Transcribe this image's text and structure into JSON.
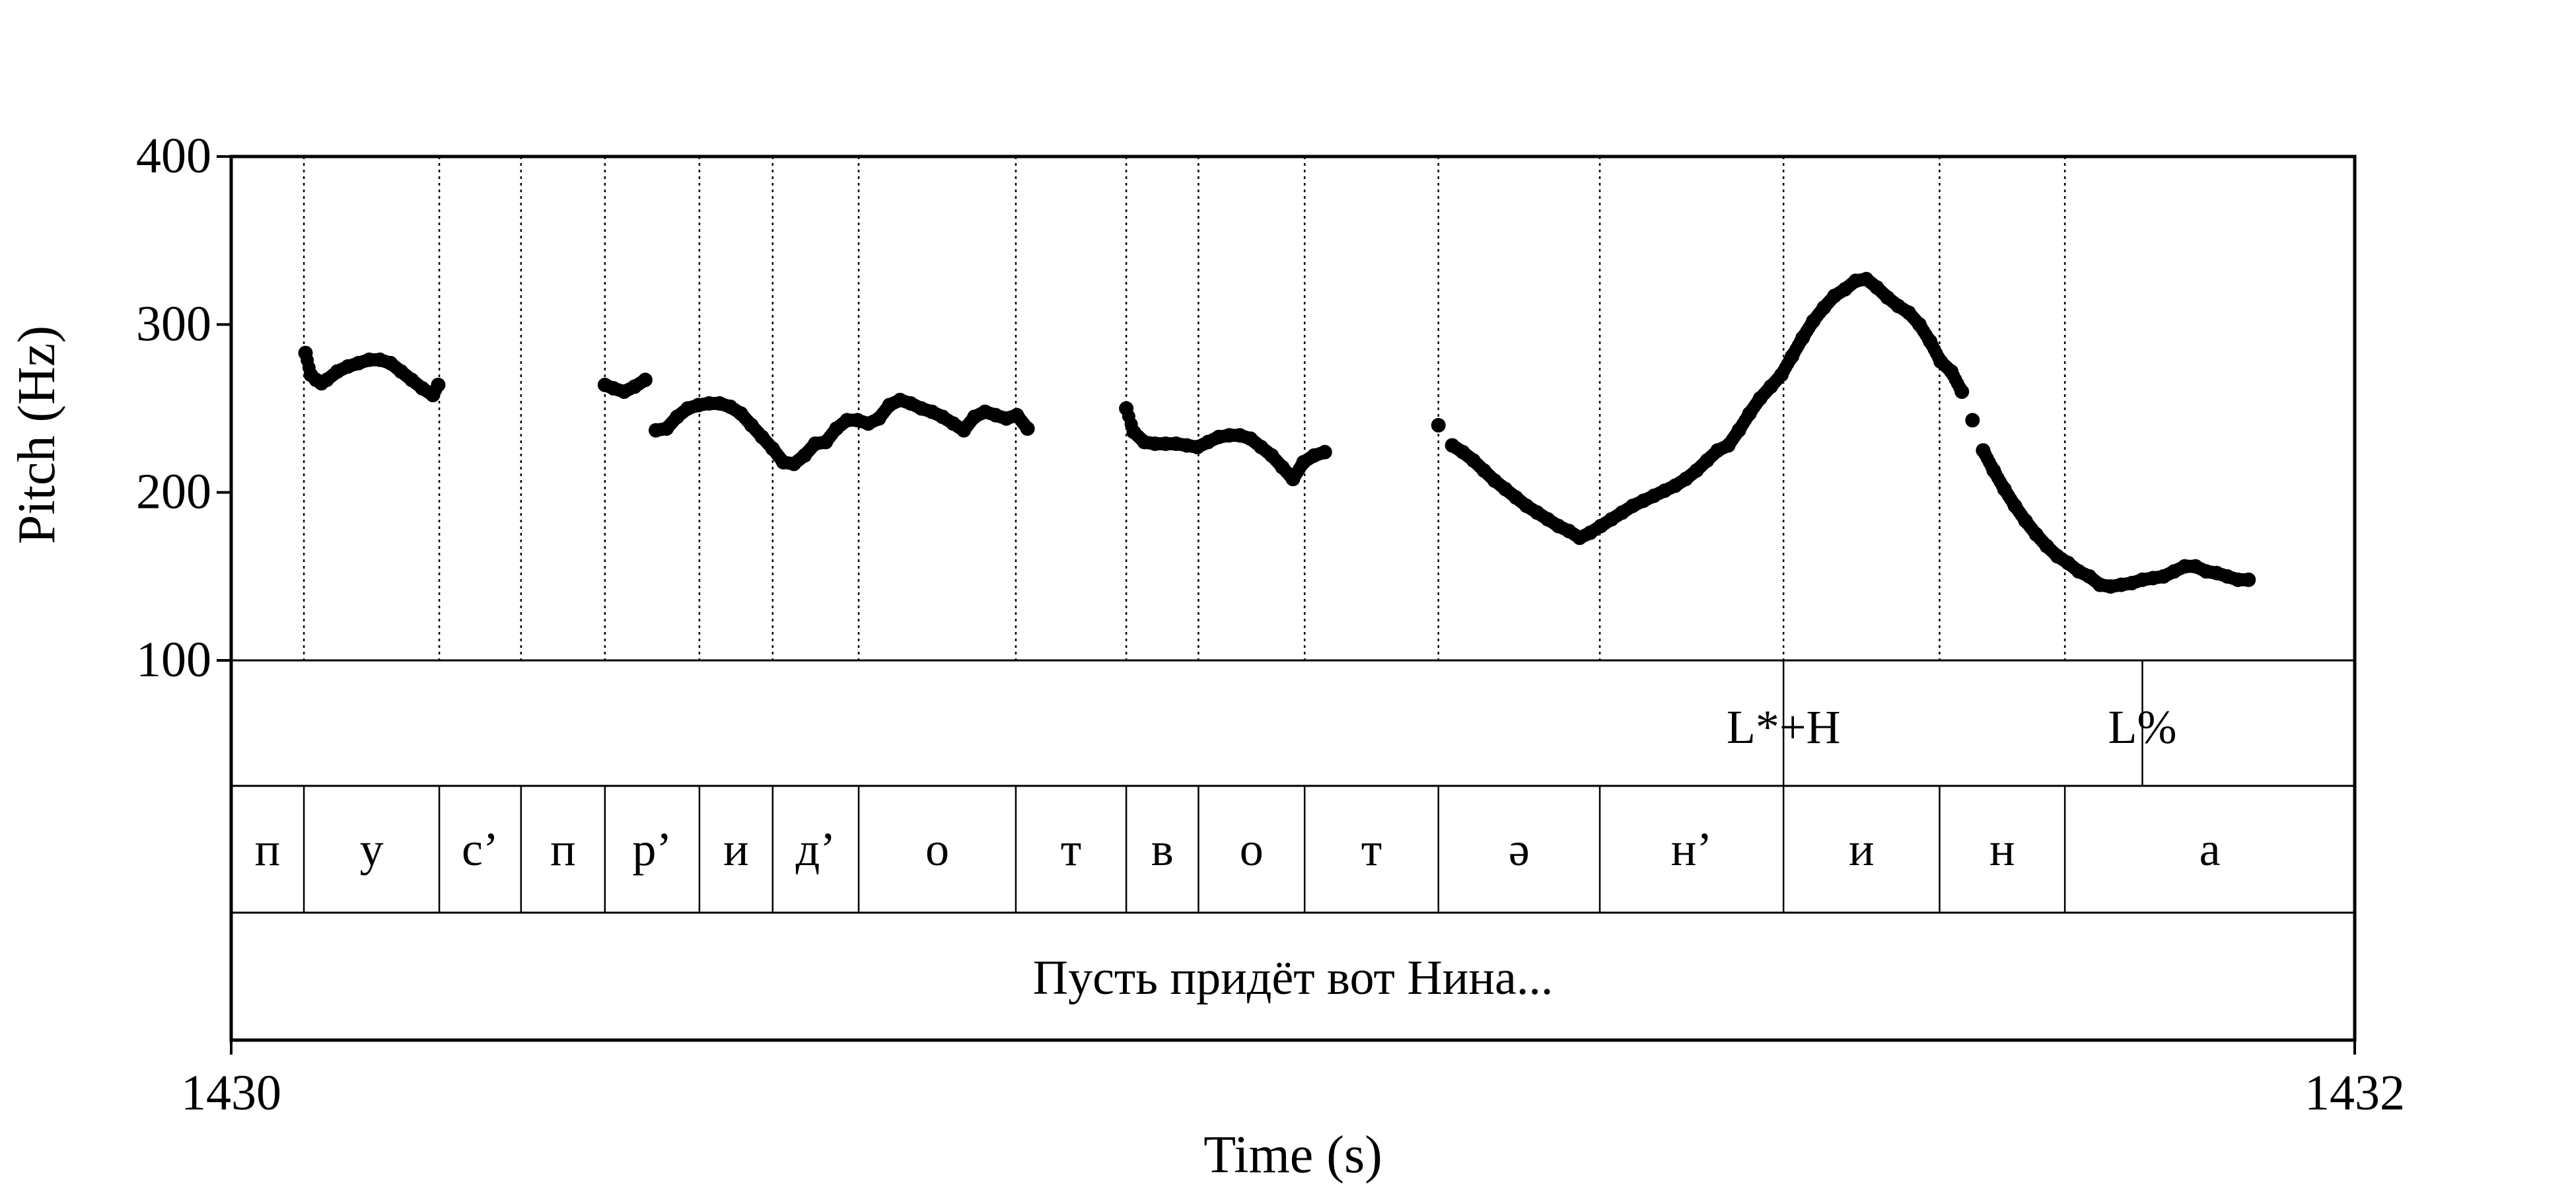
{
  "chart_data": {
    "type": "scatter",
    "title": "",
    "xlabel": "Time (s)",
    "ylabel": "Pitch (Hz)",
    "xlim": [
      1430,
      1432
    ],
    "ylim": [
      100,
      400
    ],
    "x_tick_labels": [
      "1430",
      "1432"
    ],
    "y_tick_labels": [
      "100",
      "200",
      "300",
      "400"
    ],
    "y_ticks": [
      100,
      200,
      300,
      400
    ],
    "boundaries": [
      1430.0685,
      1430.196,
      1430.273,
      1430.352,
      1430.441,
      1430.51,
      1430.591,
      1430.739,
      1430.843,
      1430.911,
      1431.011,
      1431.137,
      1431.289,
      1431.462,
      1431.609,
      1431.727
    ],
    "series": [
      {
        "name": "pitch segment 1",
        "x": [
          1430.07,
          1430.075,
          1430.08,
          1430.085,
          1430.09,
          1430.1,
          1430.11,
          1430.12,
          1430.13,
          1430.14,
          1430.15,
          1430.16,
          1430.17,
          1430.18,
          1430.19,
          1430.195
        ],
        "y": [
          283,
          270,
          267,
          265,
          267,
          272,
          275,
          277,
          279,
          279,
          277,
          272,
          267,
          262,
          258,
          264
        ]
      },
      {
        "name": "pitch segment 2",
        "x": [
          1430.352,
          1430.36,
          1430.37,
          1430.38,
          1430.39,
          1430.4,
          1430.41,
          1430.42,
          1430.43,
          1430.44,
          1430.45,
          1430.46,
          1430.47,
          1430.48,
          1430.49,
          1430.5,
          1430.51,
          1430.52,
          1430.53,
          1430.54,
          1430.55,
          1430.56,
          1430.57,
          1430.58,
          1430.59,
          1430.6,
          1430.61,
          1430.62,
          1430.63,
          1430.64,
          1430.65,
          1430.66,
          1430.67,
          1430.68,
          1430.69,
          1430.7,
          1430.71,
          1430.72,
          1430.73,
          1430.74,
          1430.75,
          1430.76,
          1430.77,
          1430.78
        ],
        "y": [
          264,
          262,
          260,
          263,
          267,
          237,
          238,
          245,
          250,
          252,
          253,
          253,
          251,
          247,
          240,
          233,
          226,
          218,
          217,
          222,
          229,
          230,
          238,
          243,
          243,
          241,
          244,
          252,
          255,
          253,
          250,
          248,
          245,
          241,
          237,
          245,
          248,
          246,
          244,
          246,
          238,
          null,
          null,
          null
        ]
      },
      {
        "name": "pitch segment 3",
        "x": [
          1430.843,
          1430.85,
          1430.86,
          1430.87,
          1430.88,
          1430.89,
          1430.9,
          1430.91,
          1430.92,
          1430.93,
          1430.94,
          1430.95,
          1430.96,
          1430.97,
          1430.98,
          1430.99,
          1431.0,
          1431.01,
          1431.02,
          1431.03
        ],
        "y": [
          250,
          236,
          230,
          229,
          229,
          229,
          228,
          227,
          230,
          233,
          234,
          234,
          232,
          227,
          222,
          215,
          208,
          218,
          222,
          224
        ]
      },
      {
        "name": "pitch segment 4",
        "x": [
          1431.137,
          1431.15,
          1431.16,
          1431.17,
          1431.18,
          1431.19,
          1431.2,
          1431.21,
          1431.22,
          1431.23,
          1431.24,
          1431.25,
          1431.26,
          1431.27,
          1431.28,
          1431.29,
          1431.3,
          1431.31,
          1431.32,
          1431.33,
          1431.34,
          1431.35,
          1431.36,
          1431.37,
          1431.38,
          1431.39,
          1431.4,
          1431.41,
          1431.42,
          1431.43,
          1431.44,
          1431.45,
          1431.46,
          1431.47,
          1431.48,
          1431.49,
          1431.5,
          1431.51,
          1431.52,
          1431.53,
          1431.54,
          1431.55,
          1431.56,
          1431.57,
          1431.58,
          1431.59,
          1431.6,
          1431.61,
          1431.62,
          1431.63,
          1431.64,
          1431.65,
          1431.66,
          1431.67,
          1431.68,
          1431.69,
          1431.7,
          1431.71,
          1431.72,
          1431.73,
          1431.74,
          1431.75,
          1431.76,
          1431.77,
          1431.78,
          1431.79,
          1431.8,
          1431.81,
          1431.82,
          1431.83,
          1431.84,
          1431.85,
          1431.86,
          1431.87,
          1431.88,
          1431.89,
          1431.9,
          1431.91,
          1431.92,
          1431.93,
          1431.94,
          1431.95,
          1431.96,
          1431.97,
          1431.98,
          1431.99,
          1431.995
        ],
        "y": [
          240,
          228,
          224,
          219,
          213,
          207,
          202,
          197,
          192,
          188,
          184,
          180,
          177,
          173,
          176,
          180,
          184,
          188,
          192,
          195,
          198,
          201,
          204,
          208,
          213,
          219,
          225,
          228,
          237,
          247,
          256,
          263,
          270,
          281,
          292,
          302,
          310,
          317,
          321,
          326,
          327,
          322,
          316,
          311,
          307,
          300,
          290,
          278,
          272,
          260,
          243,
          225,
          213,
          202,
          192,
          183,
          175,
          168,
          162,
          158,
          153,
          150,
          145,
          144,
          145,
          146,
          148,
          149,
          150,
          153,
          156,
          156,
          153,
          152,
          150,
          148,
          148,
          null,
          null,
          null,
          null,
          null,
          null,
          null,
          null,
          null,
          null
        ]
      }
    ],
    "tones": [
      {
        "label": "L*+H",
        "x": 1431.462
      },
      {
        "label": "L%",
        "x": 1431.8
      }
    ],
    "segments": [
      "п",
      "у",
      "с’",
      "п",
      "р’",
      "и",
      "д’",
      "о",
      "т",
      "в",
      "о",
      "т",
      "ə",
      "н’",
      "и",
      "н",
      "а"
    ],
    "segment_boundaries": [
      1430.0685,
      1430.196,
      1430.273,
      1430.352,
      1430.441,
      1430.51,
      1430.591,
      1430.739,
      1430.843,
      1430.911,
      1431.011,
      1431.137,
      1431.289,
      1431.462,
      1431.609,
      1431.727
    ],
    "sentence": "Пусть придёт вот Нина..."
  }
}
